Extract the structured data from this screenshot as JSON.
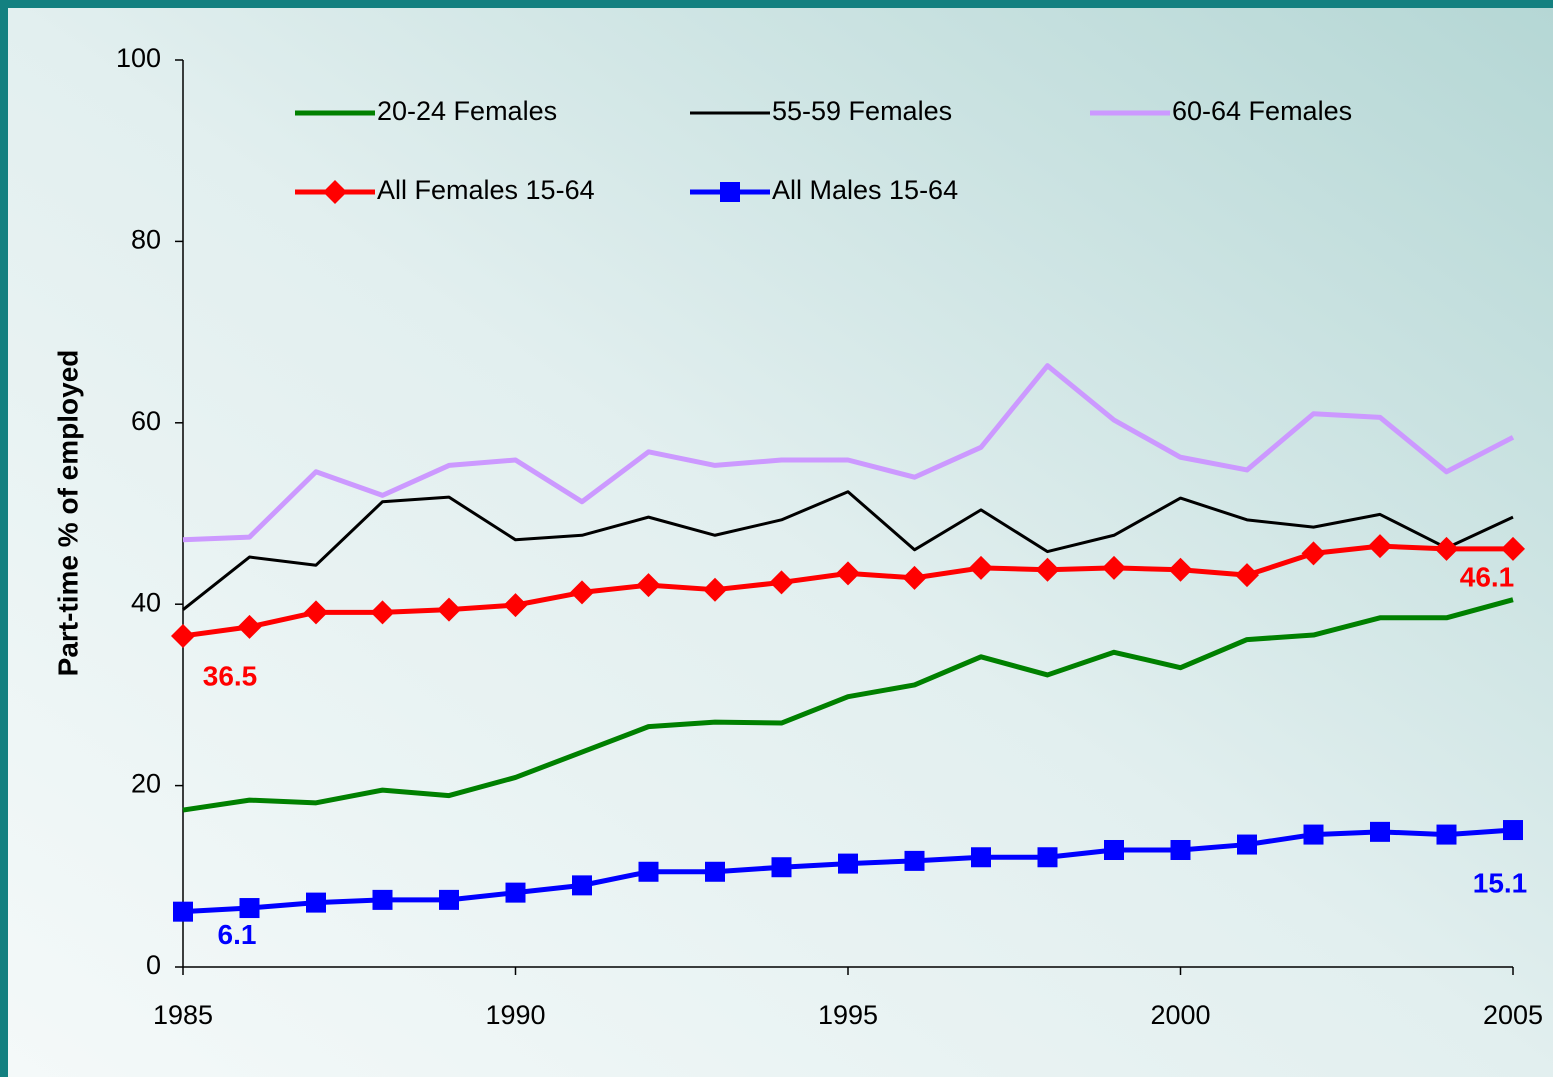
{
  "chart_data": {
    "type": "line",
    "y_label": "Part-time % of employed",
    "x": [
      1985,
      1986,
      1987,
      1988,
      1989,
      1990,
      1991,
      1992,
      1993,
      1994,
      1995,
      1996,
      1997,
      1998,
      1999,
      2000,
      2001,
      2002,
      2003,
      2004,
      2005
    ],
    "xlim": [
      1985,
      2005
    ],
    "xticks": [
      1985,
      1990,
      1995,
      2000,
      2005
    ],
    "ylim": [
      0,
      100
    ],
    "yticks": [
      0,
      20,
      40,
      60,
      80,
      100
    ],
    "series": [
      {
        "name": "20-24 Females",
        "color": "#008000",
        "marker": "none",
        "values": [
          17.3,
          18.4,
          18.1,
          19.5,
          18.9,
          20.9,
          23.7,
          26.5,
          27.0,
          26.9,
          29.8,
          31.1,
          34.2,
          32.2,
          34.7,
          33.0,
          36.1,
          36.6,
          38.5,
          38.5,
          40.5
        ]
      },
      {
        "name": "55-59 Females",
        "color": "#000000",
        "marker": "none",
        "values": [
          39.4,
          45.2,
          44.3,
          51.3,
          51.8,
          47.1,
          47.6,
          49.6,
          47.6,
          49.3,
          52.4,
          46.0,
          50.4,
          45.8,
          47.6,
          51.7,
          49.3,
          48.5,
          49.9,
          46.2,
          49.6
        ]
      },
      {
        "name": "60-64 Females",
        "color": "#cc99ff",
        "marker": "none",
        "values": [
          47.1,
          47.4,
          54.6,
          52.0,
          55.3,
          55.9,
          51.3,
          56.8,
          55.3,
          55.9,
          55.9,
          54.0,
          57.3,
          66.3,
          60.3,
          56.2,
          54.8,
          61.0,
          60.6,
          54.6,
          58.4
        ]
      },
      {
        "name": "All Females 15-64",
        "color": "#ff0000",
        "marker": "diamond",
        "values": [
          36.5,
          37.5,
          39.1,
          39.1,
          39.4,
          39.9,
          41.3,
          42.1,
          41.6,
          42.4,
          43.4,
          42.9,
          44.0,
          43.8,
          44.0,
          43.8,
          43.2,
          45.6,
          46.4,
          46.1,
          46.1
        ]
      },
      {
        "name": "All Males 15-64",
        "color": "#0000ff",
        "marker": "square",
        "values": [
          6.1,
          6.5,
          7.1,
          7.4,
          7.4,
          8.2,
          9.0,
          10.5,
          10.5,
          11.0,
          11.4,
          11.7,
          12.1,
          12.1,
          12.9,
          12.9,
          13.5,
          14.6,
          14.9,
          14.6,
          15.1
        ]
      }
    ]
  }
}
